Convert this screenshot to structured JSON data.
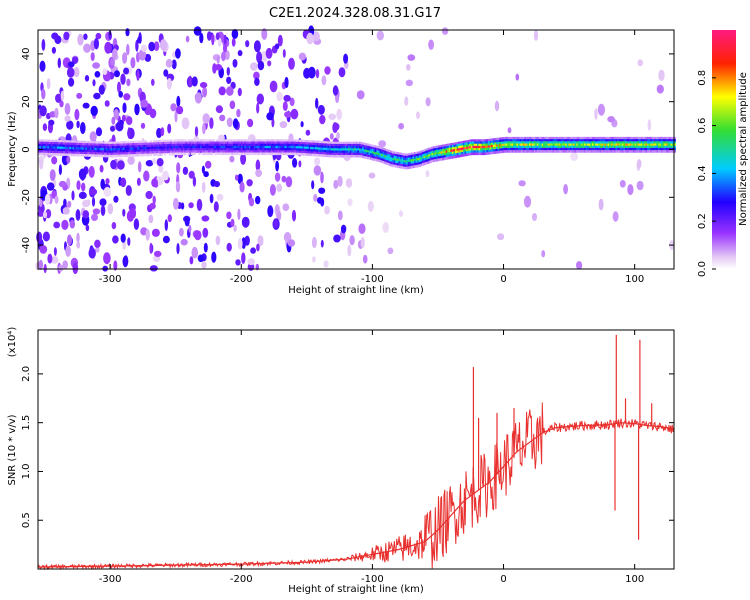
{
  "title": "C2E1.2024.328.08.31.G17",
  "chart_data": [
    {
      "type": "heatmap",
      "title": "C2E1.2024.328.08.31.G17",
      "xlabel": "Height of straight line (km)",
      "ylabel": "Frequency (Hz)",
      "xlim": [
        -355,
        130
      ],
      "ylim": [
        -50,
        50
      ],
      "x_ticks": [
        "-300",
        "-200",
        "-100",
        "0",
        "100"
      ],
      "y_ticks": [
        "-40",
        "-20",
        "0",
        "20",
        "40"
      ],
      "colorbar": {
        "label": "Normalized spectral amplitude",
        "range": [
          0,
          1
        ],
        "ticks": [
          "0.0",
          "0.2",
          "0.4",
          "0.6",
          "0.8"
        ]
      },
      "ridge": {
        "x": [
          -355,
          -300,
          -250,
          -200,
          -160,
          -130,
          -110,
          -95,
          -85,
          -75,
          -65,
          -55,
          -45,
          -35,
          -25,
          -15,
          0,
          30,
          60,
          90,
          130
        ],
        "frequency": [
          1,
          0,
          1,
          1,
          1,
          0,
          0,
          -2,
          -4,
          -5,
          -4,
          -2,
          -1,
          0,
          1,
          1,
          2,
          2,
          2,
          2,
          2
        ],
        "peak_amplitude": [
          0.4,
          0.35,
          0.3,
          0.35,
          0.4,
          0.45,
          0.5,
          0.55,
          0.55,
          0.55,
          0.6,
          0.65,
          0.8,
          1.0,
          0.95,
          0.9,
          0.75,
          0.7,
          0.7,
          0.75,
          0.7
        ]
      }
    },
    {
      "type": "line",
      "xlabel": "Height of straight line (km)",
      "ylabel": "SNR (10 * v/v)",
      "y_multiplier": "(x10⁴)",
      "xlim": [
        -355,
        130
      ],
      "ylim": [
        0,
        2.45
      ],
      "x_ticks": [
        "-300",
        "-200",
        "-100",
        "0",
        "100"
      ],
      "y_ticks": [
        "0.5",
        "1.0",
        "1.5",
        "2.0"
      ],
      "color": "#e8312f",
      "x": [
        -355,
        -300,
        -250,
        -200,
        -150,
        -120,
        -100,
        -80,
        -60,
        -50,
        -40,
        -30,
        -20,
        -10,
        0,
        10,
        20,
        30,
        40,
        60,
        80,
        90,
        100,
        110,
        120,
        130
      ],
      "y": [
        0.02,
        0.03,
        0.04,
        0.05,
        0.07,
        0.1,
        0.15,
        0.2,
        0.28,
        0.4,
        0.55,
        0.7,
        0.8,
        0.9,
        1.05,
        1.2,
        1.3,
        1.4,
        1.45,
        1.47,
        1.48,
        1.5,
        1.49,
        1.47,
        1.46,
        1.43
      ],
      "spikes": [
        {
          "x": -23,
          "y": 2.07
        },
        {
          "x": -19,
          "y": 1.55
        },
        {
          "x": -5,
          "y": 1.6
        },
        {
          "x": 8,
          "y": 1.65
        },
        {
          "x": 85,
          "y": 0.6
        },
        {
          "x": 86,
          "y": 2.4
        },
        {
          "x": 93,
          "y": 1.75
        },
        {
          "x": 103,
          "y": 0.3
        },
        {
          "x": 104,
          "y": 2.35
        },
        {
          "x": 113,
          "y": 1.7
        }
      ]
    }
  ]
}
